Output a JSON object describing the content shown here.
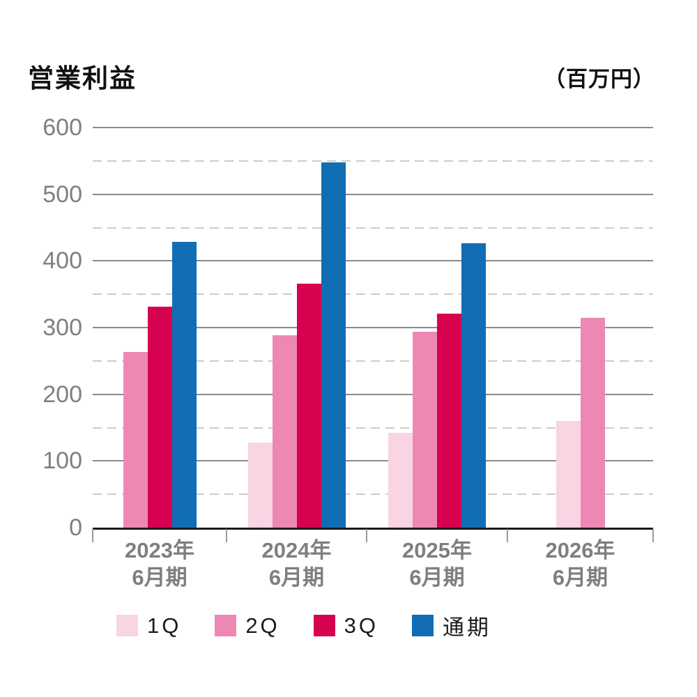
{
  "page": {
    "title": "営業利益",
    "unit": "（百万円）"
  },
  "chart_data": {
    "type": "bar",
    "title": "営業利益",
    "unit_label": "（百万円）",
    "categories": [
      {
        "line1": "2023年",
        "line2": "6月期"
      },
      {
        "line1": "2024年",
        "line2": "6月期"
      },
      {
        "line1": "2025年",
        "line2": "6月期"
      },
      {
        "line1": "2026年",
        "line2": "6月期"
      }
    ],
    "series": [
      {
        "name": "1Q",
        "color": "#f9d4e3",
        "values": [
          null,
          128,
          142,
          160
        ]
      },
      {
        "name": "2Q",
        "color": "#ed88b5",
        "values": [
          263,
          288,
          294,
          315
        ]
      },
      {
        "name": "3Q",
        "color": "#d60250",
        "values": [
          331,
          366,
          321,
          null
        ]
      },
      {
        "name": "通期",
        "color": "#116db4",
        "values": [
          429,
          548,
          426,
          null
        ]
      }
    ],
    "ylim": [
      0,
      600
    ],
    "yticks": [
      0,
      100,
      200,
      300,
      400,
      500,
      600
    ],
    "minor_yticks": [
      50,
      150,
      250,
      350,
      450,
      550
    ],
    "grid": "horizontal: solid major lines, dashed minor lines",
    "legend_position": "bottom"
  },
  "style_colors": {
    "axis_label": "#7f7f7f",
    "major_grid": "#8a8a8a",
    "minor_grid": "#cbcbcb",
    "axis_line": "#1a1a1a",
    "title_text": "#111111"
  }
}
